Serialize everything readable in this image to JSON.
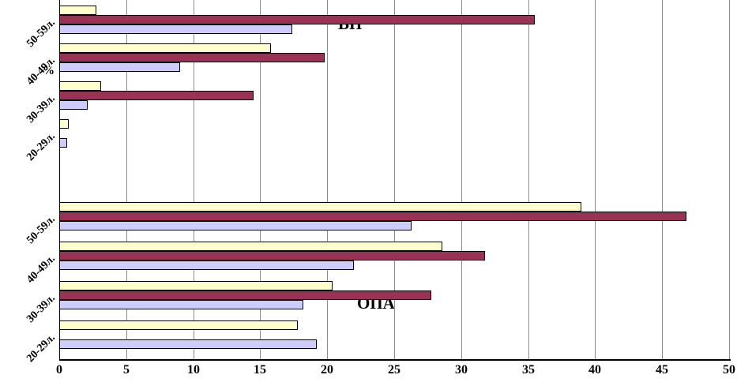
{
  "chart_data": {
    "type": "bar",
    "orientation": "horizontal",
    "title": "",
    "xlabel_unit": "%",
    "xlim": [
      0,
      50
    ],
    "xticks": [
      0,
      5,
      10,
      15,
      20,
      25,
      30,
      35,
      40,
      45,
      50
    ],
    "grid": true,
    "legend": false,
    "series_colors": [
      "#FFFFCC",
      "#993355",
      "#CCCCFF"
    ],
    "series_names": [
      "yellow",
      "maroon",
      "lavender"
    ],
    "groups": [
      {
        "label": "ВП",
        "categories": [
          "50-59л.",
          "40-49л.",
          "30-39л.",
          "20-29л."
        ],
        "series": [
          {
            "name": "yellow",
            "values": [
              2.8,
              15.8,
              3.1,
              0.7
            ]
          },
          {
            "name": "maroon",
            "values": [
              35.5,
              19.8,
              14.5,
              0
            ]
          },
          {
            "name": "lavender",
            "values": [
              17.4,
              9.0,
              2.1,
              0.6
            ]
          }
        ]
      },
      {
        "label": "ОПА",
        "categories": [
          "50-59л.",
          "40-49л.",
          "30-39л.",
          "20-29л."
        ],
        "series": [
          {
            "name": "yellow",
            "values": [
              39.0,
              28.6,
              20.4,
              17.8
            ]
          },
          {
            "name": "maroon",
            "values": [
              46.8,
              31.8,
              27.8,
              0
            ]
          },
          {
            "name": "lavender",
            "values": [
              26.3,
              22.0,
              18.2,
              19.2
            ]
          }
        ]
      }
    ]
  }
}
